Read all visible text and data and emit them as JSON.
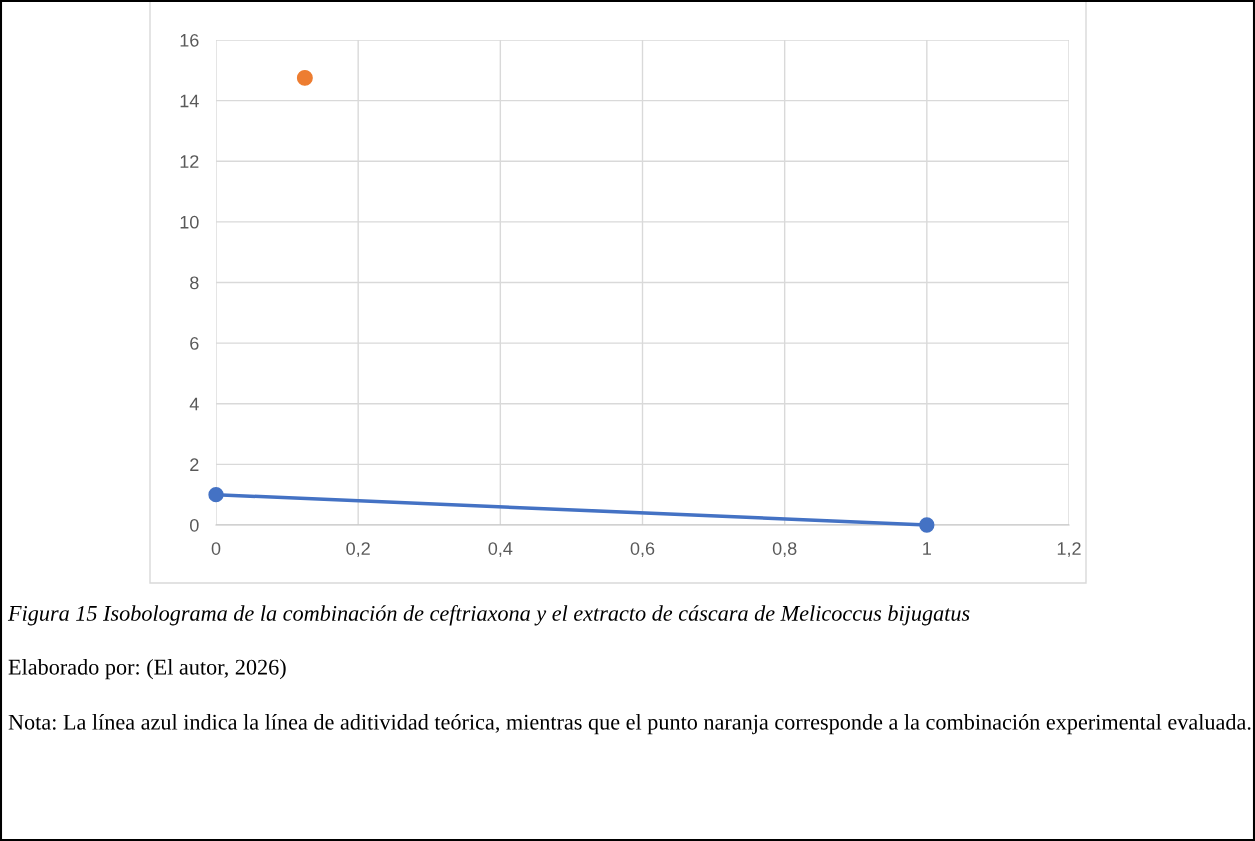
{
  "chart_data": {
    "type": "line",
    "series": [
      {
        "color": "#4472c4",
        "x": [
          0,
          1
        ],
        "values": [
          1,
          0
        ],
        "marker": "circle"
      },
      {
        "type": "scatter",
        "color": "#ed7d31",
        "x": [
          0.125
        ],
        "values": [
          14.75
        ],
        "marker": "circle"
      }
    ],
    "xlim": [
      0,
      1.2
    ],
    "xticks": [
      0,
      {
        "value": 0.2,
        "label": "0,2"
      },
      {
        "value": 0.4,
        "label": "0,4"
      },
      {
        "value": 0.6,
        "label": "0,6"
      },
      {
        "value": 0.8,
        "label": "0,8"
      },
      1,
      {
        "value": 1.2,
        "label": "1,2"
      }
    ],
    "ylim": [
      0,
      16
    ],
    "yticks": [
      0,
      2,
      4,
      6,
      8,
      10,
      12,
      14,
      16
    ],
    "grid": true,
    "legend": false,
    "annotations": [
      "Figura 15 Isobolograma de la combinación de ceftriaxona y el extracto de cáscara de Melicoccus bijugatus",
      "Elaborado por: (El autor, 2026)",
      "Nota: La línea azul indica la línea de aditividad teórica, mientras que el punto naranja corresponde a la combinación experimental evaluada."
    ]
  }
}
